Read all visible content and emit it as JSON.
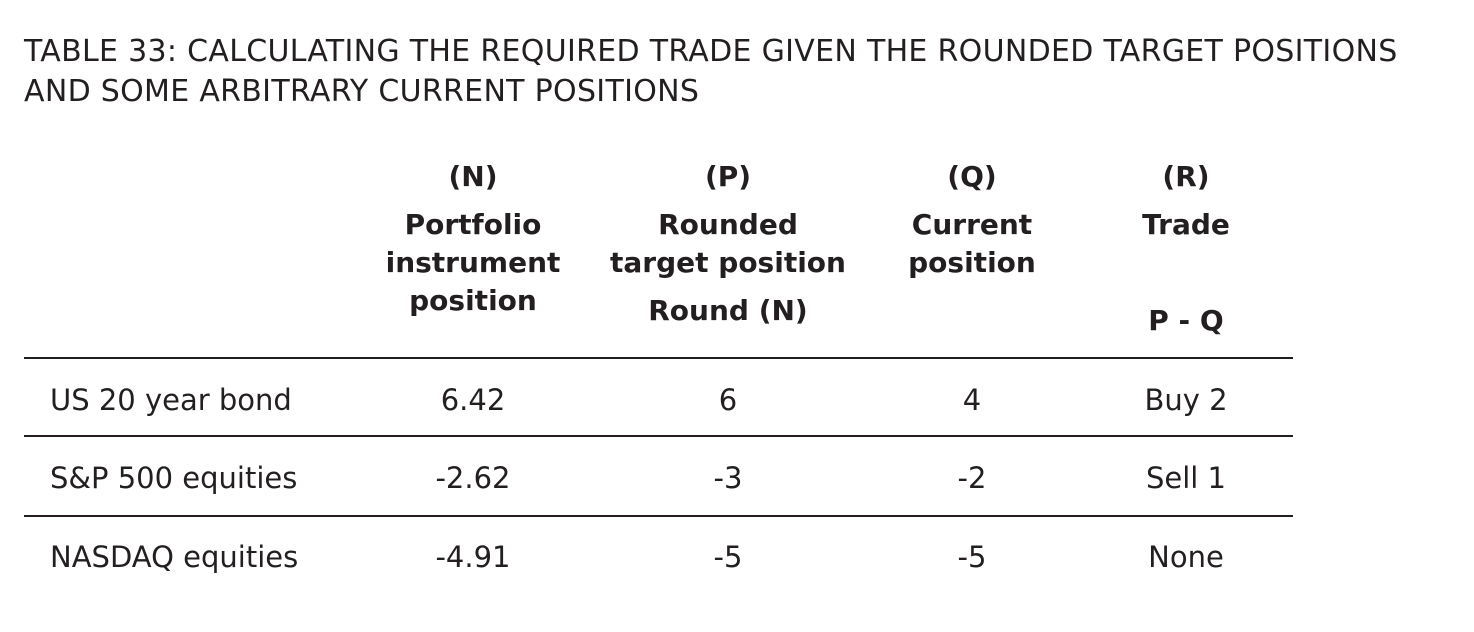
{
  "title": {
    "line1": "TABLE 33: CALCULATING THE REQUIRED TRADE GIVEN THE ROUNDED TARGET POSITIONS",
    "line2": "AND SOME ARBITRARY CURRENT POSITIONS"
  },
  "columns": [
    {
      "code": "(N)",
      "label_lines": [
        "Portfolio",
        "instrument",
        "position"
      ],
      "formula": ""
    },
    {
      "code": "(P)",
      "label_lines": [
        "Rounded",
        "target position"
      ],
      "formula": "Round (N)"
    },
    {
      "code": "(Q)",
      "label_lines": [
        "Current",
        "position"
      ],
      "formula": ""
    },
    {
      "code": "(R)",
      "label_lines": [
        "Trade"
      ],
      "formula": "P - Q"
    }
  ],
  "rows": [
    {
      "label": "US 20 year bond",
      "values": [
        "6.42",
        "6",
        "4",
        "Buy 2"
      ]
    },
    {
      "label": "S&P 500 equities",
      "values": [
        "-2.62",
        "-3",
        "-2",
        "Sell 1"
      ]
    },
    {
      "label": "NASDAQ equities",
      "values": [
        "-4.91",
        "-5",
        "-5",
        "None"
      ]
    }
  ]
}
